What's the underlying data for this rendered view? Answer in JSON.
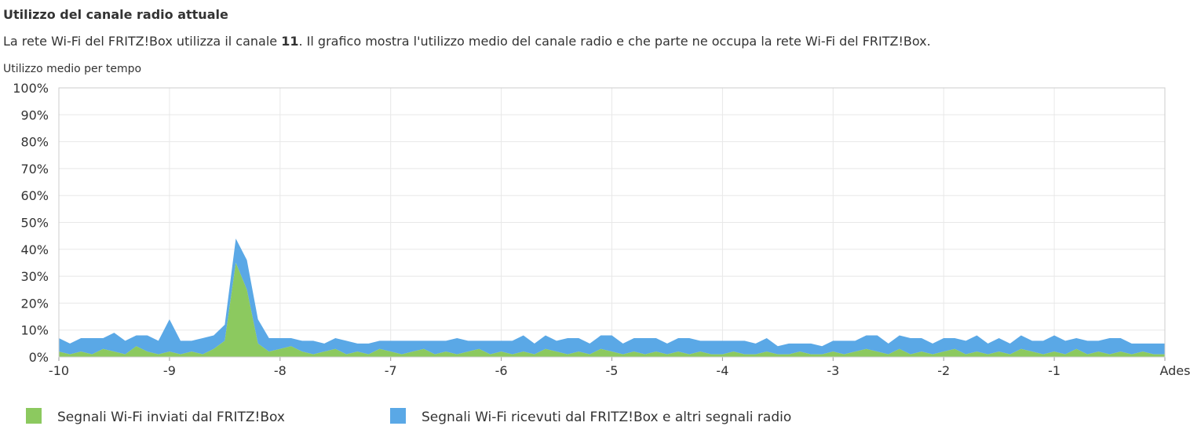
{
  "header": {
    "title": "Utilizzo del canale radio attuale",
    "description_before": "La rete Wi-Fi del FRITZ!Box utilizza il canale ",
    "channel": 11,
    "description_after": ". Il grafico mostra l'utilizzo medio del canale radio e che parte ne occupa la rete Wi-Fi del FRITZ!Box."
  },
  "chart_data": {
    "type": "stacked-area",
    "y_label": "Utilizzo medio per tempo",
    "x": [
      -10,
      -9.9,
      -9.8,
      -9.7,
      -9.6,
      -9.5,
      -9.4,
      -9.3,
      -9.2,
      -9.1,
      -9,
      -8.9,
      -8.8,
      -8.7,
      -8.6,
      -8.5,
      -8.4,
      -8.3,
      -8.2,
      -8.1,
      -8,
      -7.9,
      -7.8,
      -7.7,
      -7.6,
      -7.5,
      -7.4,
      -7.3,
      -7.2,
      -7.1,
      -7,
      -6.9,
      -6.8,
      -6.7,
      -6.6,
      -6.5,
      -6.4,
      -6.3,
      -6.2,
      -6.1,
      -6,
      -5.9,
      -5.8,
      -5.7,
      -5.6,
      -5.5,
      -5.4,
      -5.3,
      -5.2,
      -5.1,
      -5,
      -4.9,
      -4.8,
      -4.7,
      -4.6,
      -4.5,
      -4.4,
      -4.3,
      -4.2,
      -4.1,
      -4,
      -3.9,
      -3.8,
      -3.7,
      -3.6,
      -3.5,
      -3.4,
      -3.3,
      -3.2,
      -3.1,
      -3,
      -2.9,
      -2.8,
      -2.7,
      -2.6,
      -2.5,
      -2.4,
      -2.3,
      -2.2,
      -2.1,
      -2,
      -1.9,
      -1.8,
      -1.7,
      -1.6,
      -1.5,
      -1.4,
      -1.3,
      -1.2,
      -1.1,
      -1,
      -0.9,
      -0.8,
      -0.7,
      -0.6,
      -0.5,
      -0.4,
      -0.3,
      -0.2,
      -0.1,
      0
    ],
    "series": [
      {
        "name": "Segnali Wi-Fi inviati dal FRITZ!Box",
        "color": "#8cc95f",
        "values": [
          2,
          1,
          2,
          1,
          3,
          2,
          1,
          4,
          2,
          1,
          2,
          1,
          2,
          1,
          3,
          6,
          35,
          25,
          5,
          2,
          3,
          4,
          2,
          1,
          2,
          3,
          1,
          2,
          1,
          3,
          2,
          1,
          2,
          3,
          1,
          2,
          1,
          2,
          3,
          1,
          2,
          1,
          2,
          1,
          3,
          2,
          1,
          2,
          1,
          3,
          2,
          1,
          2,
          1,
          2,
          1,
          2,
          1,
          2,
          1,
          1,
          2,
          1,
          1,
          2,
          1,
          1,
          2,
          1,
          1,
          2,
          1,
          2,
          3,
          2,
          1,
          3,
          1,
          2,
          1,
          2,
          3,
          1,
          2,
          1,
          2,
          1,
          3,
          2,
          1,
          2,
          1,
          3,
          1,
          2,
          1,
          2,
          1,
          2,
          1,
          1
        ]
      },
      {
        "name": "Segnali Wi-Fi ricevuti dal FRITZ!Box e altri segnali radio",
        "color": "#5aa8e6",
        "values": [
          5,
          4,
          5,
          6,
          4,
          7,
          5,
          4,
          6,
          5,
          12,
          5,
          4,
          6,
          5,
          6,
          9,
          11,
          9,
          5,
          4,
          3,
          4,
          5,
          3,
          4,
          5,
          3,
          4,
          3,
          4,
          5,
          4,
          3,
          5,
          4,
          6,
          4,
          3,
          5,
          4,
          5,
          6,
          4,
          5,
          4,
          6,
          5,
          4,
          5,
          6,
          4,
          5,
          6,
          5,
          4,
          5,
          6,
          4,
          5,
          5,
          4,
          5,
          4,
          5,
          3,
          4,
          3,
          4,
          3,
          4,
          5,
          4,
          5,
          6,
          4,
          5,
          6,
          5,
          4,
          5,
          4,
          5,
          6,
          4,
          5,
          4,
          5,
          4,
          5,
          6,
          5,
          4,
          5,
          4,
          6,
          5,
          4,
          3,
          4,
          4
        ]
      }
    ],
    "xlim": [
      -10,
      0
    ],
    "xticks": [
      -10,
      -9,
      -8,
      -7,
      -6,
      -5,
      -4,
      -3,
      -2,
      -1,
      {
        "value": 0,
        "label": "Adesso"
      }
    ],
    "ylim": [
      0,
      100
    ],
    "yticks": [
      {
        "value": 0,
        "label": "0%"
      },
      {
        "value": 10,
        "label": "10%"
      },
      {
        "value": 20,
        "label": "20%"
      },
      {
        "value": 30,
        "label": "30%"
      },
      {
        "value": 40,
        "label": "40%"
      },
      {
        "value": 50,
        "label": "50%"
      },
      {
        "value": 60,
        "label": "60%"
      },
      {
        "value": 70,
        "label": "70%"
      },
      {
        "value": 80,
        "label": "80%"
      },
      {
        "value": 90,
        "label": "90%"
      },
      {
        "value": 100,
        "label": "100%"
      }
    ],
    "grid": true
  }
}
